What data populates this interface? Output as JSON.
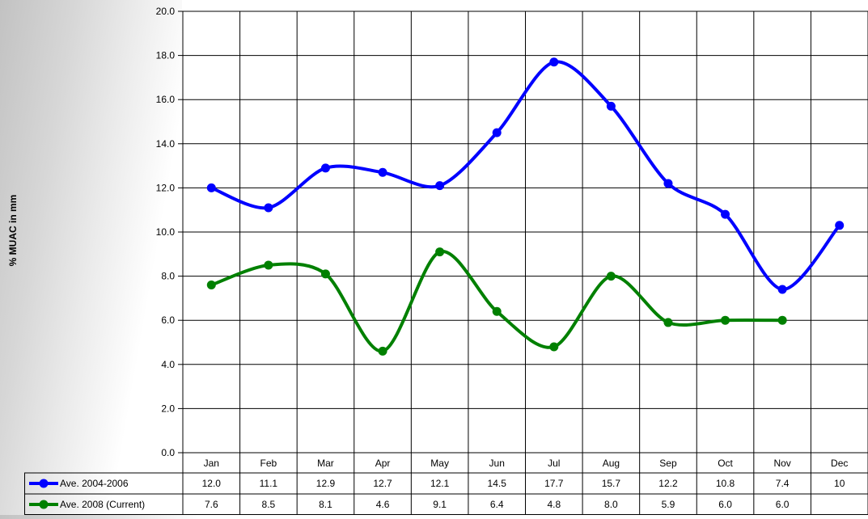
{
  "chart_data": {
    "type": "line",
    "ylabel": "% MUAC in mm",
    "ylim": [
      0,
      20
    ],
    "y_ticks": [
      "0.0",
      "2.0",
      "4.0",
      "6.0",
      "8.0",
      "10.0",
      "12.0",
      "14.0",
      "16.0",
      "18.0",
      "20.0"
    ],
    "categories": [
      "Jan",
      "Feb",
      "Mar",
      "Apr",
      "May",
      "Jun",
      "Jul",
      "Aug",
      "Sep",
      "Oct",
      "Nov",
      "Dec"
    ],
    "grid": true,
    "legend": "data-table-below",
    "series": [
      {
        "name": "Ave. 2004-2006",
        "color": "#0000ff",
        "values": [
          12.0,
          11.1,
          12.9,
          12.7,
          12.1,
          14.5,
          17.7,
          15.7,
          12.2,
          10.8,
          7.4,
          10.3
        ],
        "labels": [
          "12.0",
          "11.1",
          "12.9",
          "12.7",
          "12.1",
          "14.5",
          "17.7",
          "15.7",
          "12.2",
          "10.8",
          "7.4",
          "10"
        ]
      },
      {
        "name": "Ave. 2008 (Current)",
        "color": "#008000",
        "values": [
          7.6,
          8.5,
          8.1,
          4.6,
          9.1,
          6.4,
          4.8,
          8.0,
          5.9,
          6.0,
          6.0,
          null
        ],
        "labels": [
          "7.6",
          "8.5",
          "8.1",
          "4.6",
          "9.1",
          "6.4",
          "4.8",
          "8.0",
          "5.9",
          "6.0",
          "6.0",
          ""
        ]
      }
    ]
  }
}
